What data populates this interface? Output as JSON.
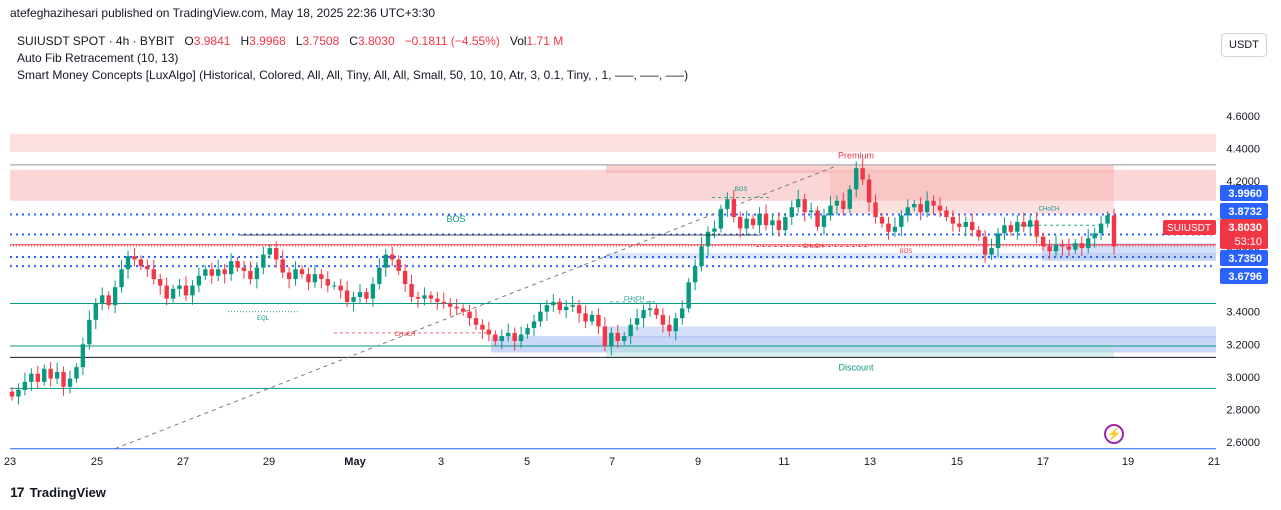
{
  "header": {
    "publisher_line": "atefeghazihesari published on TradingView.com, May 18, 2025 22:36 UTC+3:30"
  },
  "legend": {
    "symbol": "SUIUSDT SPOT · 4h · BYBIT",
    "o_label": "O",
    "o_value": "3.9841",
    "h_label": "H",
    "h_value": "3.9968",
    "l_label": "L",
    "l_value": "3.7508",
    "c_label": "C",
    "c_value": "3.8030",
    "change": "−0.1811 (−4.55%)",
    "vol_label": "Vol",
    "vol_value": "1.71 M",
    "indicator1": "Auto Fib Retracement (10, 13)",
    "indicator2": "Smart Money Concepts [LuxAlgo] (Historical, Colored, All, All, Tiny, All, All, Small, 50, 10, 10, Atr, 3, 0.1, Tiny, , 1, —–, —–, —–)"
  },
  "toolbar": {
    "currency": "USDT"
  },
  "footer": {
    "brand": "TradingView"
  },
  "colors": {
    "up": "#089981",
    "down": "#f23645",
    "premium_zone": "#f7a5a5",
    "discount_zone": "#b2dfdb",
    "demand_zone": "#9fb7f0",
    "dotted_blue": "#2962ff"
  },
  "chart_data": {
    "type": "candlestick",
    "ylim": [
      2.54,
      4.82
    ],
    "y_ticks": [
      "4.6000",
      "4.4000",
      "4.2000",
      "4.0000",
      "3.8000",
      "3.6000",
      "3.4000",
      "3.2000",
      "3.0000",
      "2.8000",
      "2.6000"
    ],
    "x_ticks": [
      "23",
      "25",
      "27",
      "29",
      "May",
      "3",
      "5",
      "7",
      "9",
      "11",
      "13",
      "15",
      "17",
      "19",
      "21"
    ],
    "price_labels": [
      {
        "value": "3.9960",
        "price": 3.996,
        "color": "#2962ff"
      },
      {
        "value": "3.8732",
        "price": 3.8732,
        "color": "#2962ff"
      },
      {
        "value": "3.7350",
        "price": 3.735,
        "color": "#2962ff"
      },
      {
        "value": "3.6796",
        "price": 3.6796,
        "color": "#2962ff"
      }
    ],
    "current_price": {
      "symbol": "SUIUSDT",
      "value": "3.8030",
      "countdown": "53:10",
      "price": 3.803
    },
    "annotations": [
      {
        "text": "Premium",
        "price": 4.34
      },
      {
        "text": "Discount",
        "price": 3.04
      },
      {
        "text": "BOS",
        "price": 3.95
      },
      {
        "text": "BOS",
        "price": 4.14
      },
      {
        "text": "CHoCH",
        "price": 3.47
      },
      {
        "text": "CHoCH",
        "price": 3.25
      },
      {
        "text": "CHoCH",
        "price": 3.79
      },
      {
        "text": "CHoCH",
        "price": 4.02
      },
      {
        "text": "BOS",
        "price": 3.76
      },
      {
        "text": "EQL",
        "price": 3.35
      }
    ],
    "candles_close": [
      2.88,
      2.92,
      2.97,
      3.02,
      2.97,
      3.05,
      2.99,
      3.03,
      2.94,
      2.99,
      3.06,
      3.2,
      3.35,
      3.45,
      3.5,
      3.44,
      3.55,
      3.66,
      3.74,
      3.72,
      3.68,
      3.66,
      3.6,
      3.56,
      3.48,
      3.54,
      3.56,
      3.5,
      3.56,
      3.62,
      3.66,
      3.62,
      3.66,
      3.63,
      3.71,
      3.67,
      3.65,
      3.6,
      3.67,
      3.75,
      3.79,
      3.72,
      3.64,
      3.6,
      3.66,
      3.63,
      3.58,
      3.63,
      3.6,
      3.56,
      3.56,
      3.53,
      3.46,
      3.49,
      3.52,
      3.48,
      3.57,
      3.67,
      3.75,
      3.72,
      3.65,
      3.57,
      3.49,
      3.48,
      3.5,
      3.48,
      3.46,
      3.45,
      3.43,
      3.42,
      3.4,
      3.36,
      3.32,
      3.29,
      3.26,
      3.22,
      3.25,
      3.27,
      3.22,
      3.26,
      3.3,
      3.34,
      3.4,
      3.44,
      3.46,
      3.41,
      3.43,
      3.44,
      3.39,
      3.34,
      3.38,
      3.31,
      3.19,
      3.27,
      3.22,
      3.25,
      3.32,
      3.36,
      3.41,
      3.42,
      3.38,
      3.32,
      3.28,
      3.36,
      3.42,
      3.58,
      3.68,
      3.8,
      3.89,
      3.91,
      4.03,
      4.09,
      3.98,
      3.91,
      3.97,
      3.93,
      4.0,
      3.93,
      3.96,
      3.9,
      3.98,
      4.04,
      4.09,
      4.01,
      4.02,
      3.92,
      3.99,
      4.05,
      4.08,
      4.03,
      4.15,
      4.28,
      4.21,
      4.07,
      3.98,
      3.94,
      3.89,
      3.92,
      3.99,
      4.04,
      4.06,
      4.01,
      4.08,
      4.05,
      4.02,
      3.98,
      3.94,
      3.92,
      3.95,
      3.9,
      3.86,
      3.75,
      3.79,
      3.88,
      3.93,
      3.89,
      3.95,
      3.92,
      3.96,
      3.86,
      3.8,
      3.77,
      3.81,
      3.8,
      3.78,
      3.82,
      3.79,
      3.85,
      3.88,
      3.94,
      3.99,
      3.8
    ]
  }
}
